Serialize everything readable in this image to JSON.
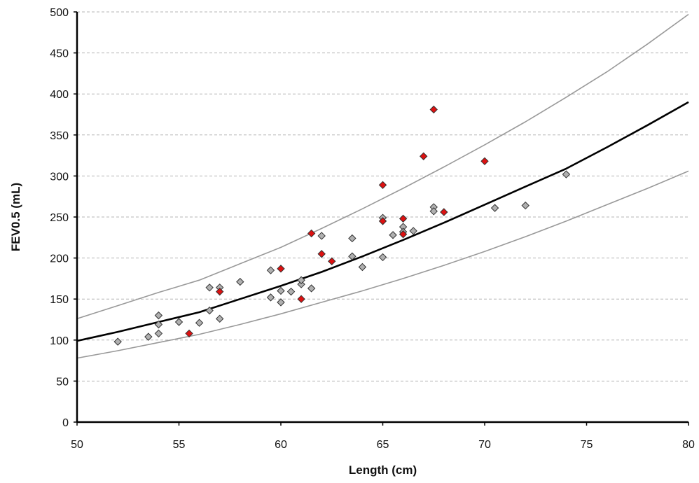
{
  "chart_data": {
    "type": "scatter",
    "xlabel": "Length (cm)",
    "ylabel": "FEV0.5 (mL)",
    "xlim": [
      50,
      80
    ],
    "ylim": [
      0,
      500
    ],
    "x_ticks": [
      50,
      55,
      60,
      65,
      70,
      75,
      80
    ],
    "y_ticks": [
      0,
      50,
      100,
      150,
      200,
      250,
      300,
      350,
      400,
      450,
      500
    ],
    "grid": "horizontal dashed",
    "legend": "none",
    "series": [
      {
        "color": "#b0b0b0",
        "marker": "diamond",
        "points": [
          [
            52,
            98
          ],
          [
            53.5,
            104
          ],
          [
            54,
            108
          ],
          [
            54,
            119
          ],
          [
            54,
            130
          ],
          [
            55,
            122
          ],
          [
            56,
            121
          ],
          [
            56.5,
            136
          ],
          [
            56.5,
            164
          ],
          [
            57,
            164
          ],
          [
            57,
            126
          ],
          [
            58,
            171
          ],
          [
            59.5,
            185
          ],
          [
            59.5,
            152
          ],
          [
            60,
            160
          ],
          [
            60,
            146
          ],
          [
            60.5,
            159
          ],
          [
            61,
            168
          ],
          [
            61,
            173
          ],
          [
            61.5,
            163
          ],
          [
            62,
            227
          ],
          [
            63.5,
            224
          ],
          [
            63.5,
            202
          ],
          [
            64,
            189
          ],
          [
            65,
            249
          ],
          [
            65,
            201
          ],
          [
            65.5,
            228
          ],
          [
            66,
            238
          ],
          [
            66,
            232
          ],
          [
            66.5,
            233
          ],
          [
            67.5,
            262
          ],
          [
            67.5,
            257
          ],
          [
            70.5,
            261
          ],
          [
            72,
            264
          ],
          [
            74,
            302
          ]
        ]
      },
      {
        "color": "#dd1111",
        "marker": "diamond",
        "points": [
          [
            55.5,
            108
          ],
          [
            57,
            159
          ],
          [
            60,
            187
          ],
          [
            61,
            150
          ],
          [
            61.5,
            230
          ],
          [
            62,
            205
          ],
          [
            62.5,
            196
          ],
          [
            65,
            289
          ],
          [
            65,
            245
          ],
          [
            66,
            248
          ],
          [
            66,
            229
          ],
          [
            67,
            324
          ],
          [
            67.5,
            381
          ],
          [
            68,
            256
          ],
          [
            70,
            318
          ]
        ]
      },
      {
        "line": "mean",
        "color": "#000000",
        "x": [
          50,
          52,
          54,
          56,
          58,
          60,
          62,
          64,
          66,
          68,
          70,
          72,
          74,
          76,
          78,
          80
        ],
        "y": [
          99,
          110,
          122,
          134,
          150,
          166,
          183,
          202,
          222,
          243,
          265,
          287,
          309,
          335,
          362,
          390
        ]
      },
      {
        "line": "upper",
        "color": "#999999",
        "x": [
          50,
          52,
          54,
          56,
          58,
          60,
          62,
          64,
          66,
          68,
          70,
          72,
          74,
          76,
          78,
          80
        ],
        "y": [
          126,
          142,
          158,
          173,
          193,
          213,
          236,
          260,
          285,
          311,
          338,
          366,
          396,
          427,
          461,
          497
        ]
      },
      {
        "line": "lower",
        "color": "#999999",
        "x": [
          50,
          52,
          54,
          56,
          58,
          60,
          62,
          64,
          66,
          68,
          70,
          72,
          74,
          76,
          78,
          80
        ],
        "y": [
          78,
          87,
          97,
          107,
          119,
          132,
          146,
          160,
          175,
          191,
          208,
          226,
          245,
          265,
          285,
          306
        ]
      }
    ]
  }
}
